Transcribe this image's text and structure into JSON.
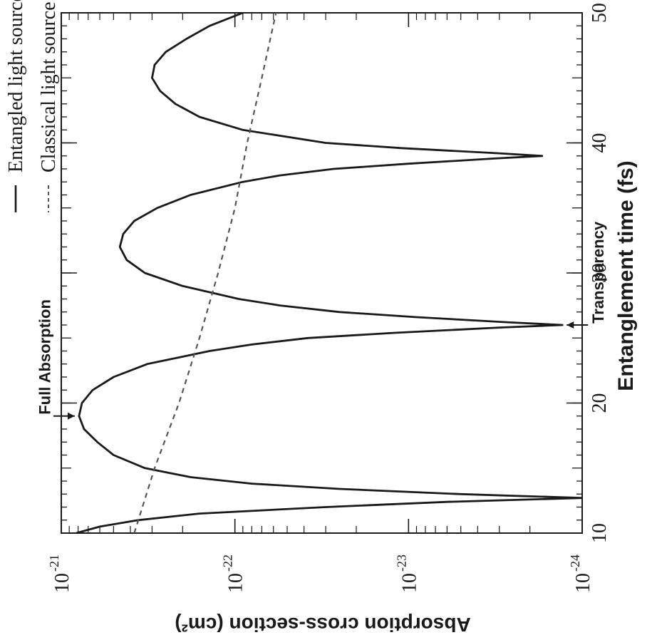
{
  "chart_data": {
    "type": "line",
    "orientation": "rotated-90-counterclockwise",
    "xlabel": "Entanglement time (fs)",
    "ylabel": "Absorption cross-section (cm²)",
    "xlim": [
      10,
      50
    ],
    "ylim": [
      1e-24,
      1e-21
    ],
    "yscale": "log",
    "x_ticks": [
      "10",
      "20",
      "30",
      "40",
      "50"
    ],
    "y_ticks": [
      {
        "value": 1e-21,
        "base": "10",
        "exp": "-21"
      },
      {
        "value": 1e-22,
        "base": "10",
        "exp": "-22"
      },
      {
        "value": 1e-23,
        "base": "10",
        "exp": "-23"
      },
      {
        "value": 1e-24,
        "base": "10",
        "exp": "-24"
      }
    ],
    "legend_position": "top",
    "series": [
      {
        "name": "Entangled light source",
        "style": "solid",
        "color": "#1a1a1a",
        "x": [
          10,
          10.5,
          11,
          11.5,
          12,
          12.4,
          12.7,
          13,
          13.4,
          13.8,
          14.3,
          15,
          16,
          17,
          18,
          19,
          20,
          21,
          22,
          23,
          24,
          24.5,
          25,
          25.4,
          25.8,
          26,
          26.2,
          26.6,
          27,
          27.5,
          28,
          29,
          30,
          31,
          32,
          33,
          34,
          35,
          36,
          37,
          37.5,
          38,
          38.4,
          38.8,
          39,
          39.2,
          39.6,
          40,
          41,
          42,
          43,
          44,
          45,
          46,
          47,
          48,
          49,
          50
        ],
        "y": [
          8.2e-22,
          6e-22,
          3.6e-22,
          1.6e-22,
          3e-23,
          6e-24,
          1e-24,
          5e-24,
          2.5e-23,
          8e-23,
          1.8e-22,
          3.3e-22,
          5e-22,
          6.2e-22,
          7.4e-22,
          7.9e-22,
          7.6e-22,
          6.6e-22,
          5e-22,
          3.2e-22,
          1.4e-22,
          8e-23,
          3.8e-23,
          1.2e-23,
          3e-24,
          1.3e-24,
          2.6e-24,
          9e-24,
          2.5e-23,
          5.5e-23,
          9.5e-23,
          2e-22,
          3.3e-22,
          4.2e-22,
          4.6e-22,
          4.4e-22,
          3.8e-22,
          2.8e-22,
          1.8e-22,
          9e-23,
          5.5e-23,
          2.7e-23,
          1e-23,
          3.2e-24,
          1.7e-24,
          3e-24,
          1.1e-23,
          3e-23,
          9e-23,
          1.6e-22,
          2.2e-22,
          2.7e-22,
          3e-22,
          2.9e-22,
          2.5e-22,
          1.9e-22,
          1.4e-22,
          9e-23
        ]
      },
      {
        "name": "Classical light source",
        "style": "dashed",
        "color": "#555555",
        "x": [
          10,
          15,
          20,
          25,
          30,
          35,
          40,
          45,
          50
        ],
        "y": [
          3.8e-22,
          2.9e-22,
          2.1e-22,
          1.6e-22,
          1.25e-22,
          1e-22,
          8.5e-23,
          7e-23,
          5.8e-23
        ]
      }
    ],
    "annotations": [
      {
        "text": "Full Absorption",
        "x": 19,
        "y": 7.9e-22
      },
      {
        "text": "Transparency",
        "x": 26,
        "y": 1.3e-24
      }
    ]
  }
}
